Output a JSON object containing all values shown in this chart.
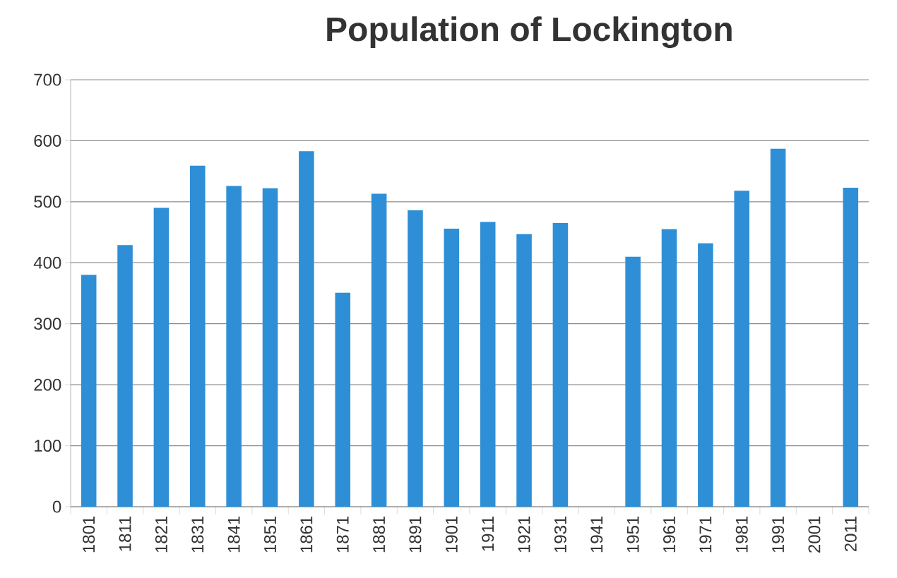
{
  "chart_data": {
    "type": "bar",
    "title": "Population of Lockington",
    "categories": [
      "1801",
      "1811",
      "1821",
      "1831",
      "1841",
      "1851",
      "1861",
      "1871",
      "1881",
      "1891",
      "1901",
      "1911",
      "1921",
      "1931",
      "1941",
      "1951",
      "1961",
      "1971",
      "1981",
      "1991",
      "2001",
      "2011"
    ],
    "values": [
      380,
      429,
      490,
      559,
      526,
      522,
      583,
      351,
      513,
      486,
      456,
      467,
      447,
      465,
      null,
      410,
      455,
      432,
      518,
      587,
      null,
      523
    ],
    "color": "#2e8fd6",
    "ylim": [
      0,
      700
    ],
    "yticks": [
      0,
      100,
      200,
      300,
      400,
      500,
      600,
      700
    ],
    "grid": "y"
  }
}
